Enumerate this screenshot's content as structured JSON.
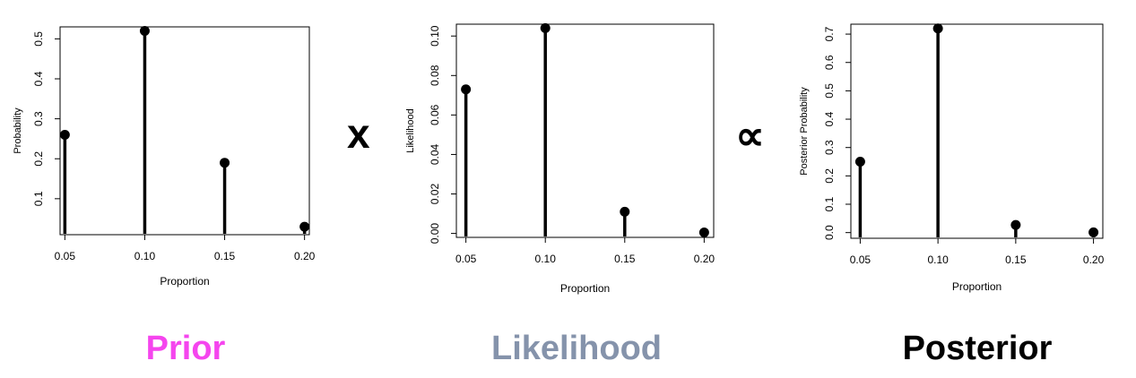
{
  "operators": {
    "times": "x",
    "proportional": "∝"
  },
  "captions": [
    {
      "text": "Prior",
      "color": "#f545ee"
    },
    {
      "text": "Likelihood",
      "color": "#8593ab"
    },
    {
      "text": "Posterior",
      "color": "#000000"
    }
  ],
  "chart_data": [
    {
      "type": "lollipop",
      "xlabel": "Proportion",
      "ylabel": "Probability",
      "x": [
        0.05,
        0.1,
        0.15,
        0.2
      ],
      "x_ticks": [
        "0.05",
        "0.10",
        "0.15",
        "0.20"
      ],
      "y": [
        0.26,
        0.52,
        0.19,
        0.03
      ],
      "y_ticks": [
        "0.1",
        "0.2",
        "0.3",
        "0.4",
        "0.5"
      ],
      "xlim": [
        0.047,
        0.203
      ],
      "ylim": [
        0.01,
        0.53
      ]
    },
    {
      "type": "lollipop",
      "xlabel": "Proportion",
      "ylabel": "Likelihood",
      "x": [
        0.05,
        0.1,
        0.15,
        0.2
      ],
      "x_ticks": [
        "0.05",
        "0.10",
        "0.15",
        "0.20"
      ],
      "y": [
        0.073,
        0.104,
        0.011,
        0.0005
      ],
      "y_ticks": [
        "0.00",
        "0.02",
        "0.04",
        "0.06",
        "0.08",
        "0.10"
      ],
      "xlim": [
        0.044,
        0.206
      ],
      "ylim": [
        -0.002,
        0.106
      ]
    },
    {
      "type": "lollipop",
      "xlabel": "Proportion",
      "ylabel": "Posterior Probability",
      "x": [
        0.05,
        0.1,
        0.15,
        0.2
      ],
      "x_ticks": [
        "0.05",
        "0.10",
        "0.15",
        "0.20"
      ],
      "y": [
        0.25,
        0.72,
        0.027,
        0.001
      ],
      "y_ticks": [
        "0.0",
        "0.1",
        "0.2",
        "0.3",
        "0.4",
        "0.5",
        "0.6",
        "0.7"
      ],
      "xlim": [
        0.044,
        0.206
      ],
      "ylim": [
        -0.02,
        0.735
      ]
    }
  ]
}
